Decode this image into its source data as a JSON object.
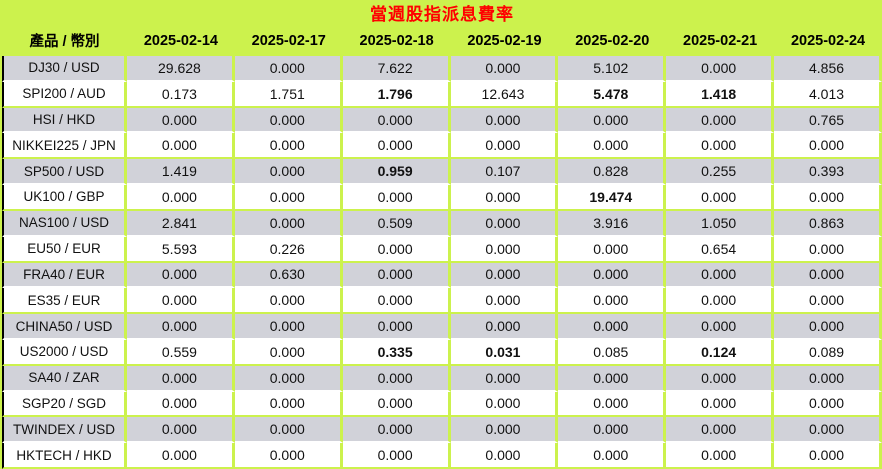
{
  "title": "當週股指派息費率",
  "colors": {
    "header_green": "#ccf24d",
    "row_gray": "#d1d2d9",
    "row_white": "#ffffff",
    "title_red": "#ff0000"
  },
  "table": {
    "product_header": "產品 / 幣別",
    "date_headers": [
      "2025-02-14",
      "2025-02-17",
      "2025-02-18",
      "2025-02-19",
      "2025-02-20",
      "2025-02-21",
      "2025-02-24"
    ],
    "rows": [
      {
        "product": "DJ30 / USD",
        "values": [
          "29.628",
          "0.000",
          "7.622",
          "0.000",
          "5.102",
          "0.000",
          "4.856"
        ],
        "bold_columns": []
      },
      {
        "product": "SPI200 / AUD",
        "values": [
          "0.173",
          "1.751",
          "1.796",
          "12.643",
          "5.478",
          "1.418",
          "4.013"
        ],
        "bold_columns": [
          2,
          4,
          5
        ]
      },
      {
        "product": "HSI / HKD",
        "values": [
          "0.000",
          "0.000",
          "0.000",
          "0.000",
          "0.000",
          "0.000",
          "0.765"
        ],
        "bold_columns": []
      },
      {
        "product": "NIKKEI225 / JPN",
        "values": [
          "0.000",
          "0.000",
          "0.000",
          "0.000",
          "0.000",
          "0.000",
          "0.000"
        ],
        "bold_columns": []
      },
      {
        "product": "SP500 / USD",
        "values": [
          "1.419",
          "0.000",
          "0.959",
          "0.107",
          "0.828",
          "0.255",
          "0.393"
        ],
        "bold_columns": [
          2
        ]
      },
      {
        "product": "UK100 / GBP",
        "values": [
          "0.000",
          "0.000",
          "0.000",
          "0.000",
          "19.474",
          "0.000",
          "0.000"
        ],
        "bold_columns": [
          4
        ]
      },
      {
        "product": "NAS100 / USD",
        "values": [
          "2.841",
          "0.000",
          "0.509",
          "0.000",
          "3.916",
          "1.050",
          "0.863"
        ],
        "bold_columns": []
      },
      {
        "product": "EU50 / EUR",
        "values": [
          "5.593",
          "0.226",
          "0.000",
          "0.000",
          "0.000",
          "0.654",
          "0.000"
        ],
        "bold_columns": []
      },
      {
        "product": "FRA40 / EUR",
        "values": [
          "0.000",
          "0.630",
          "0.000",
          "0.000",
          "0.000",
          "0.000",
          "0.000"
        ],
        "bold_columns": []
      },
      {
        "product": "ES35 / EUR",
        "values": [
          "0.000",
          "0.000",
          "0.000",
          "0.000",
          "0.000",
          "0.000",
          "0.000"
        ],
        "bold_columns": []
      },
      {
        "product": "CHINA50 / USD",
        "values": [
          "0.000",
          "0.000",
          "0.000",
          "0.000",
          "0.000",
          "0.000",
          "0.000"
        ],
        "bold_columns": []
      },
      {
        "product": "US2000 / USD",
        "values": [
          "0.559",
          "0.000",
          "0.335",
          "0.031",
          "0.085",
          "0.124",
          "0.089"
        ],
        "bold_columns": [
          2,
          3,
          5
        ]
      },
      {
        "product": "SA40 / ZAR",
        "values": [
          "0.000",
          "0.000",
          "0.000",
          "0.000",
          "0.000",
          "0.000",
          "0.000"
        ],
        "bold_columns": []
      },
      {
        "product": "SGP20 / SGD",
        "values": [
          "0.000",
          "0.000",
          "0.000",
          "0.000",
          "0.000",
          "0.000",
          "0.000"
        ],
        "bold_columns": []
      },
      {
        "product": "TWINDEX / USD",
        "values": [
          "0.000",
          "0.000",
          "0.000",
          "0.000",
          "0.000",
          "0.000",
          "0.000"
        ],
        "bold_columns": []
      },
      {
        "product": "HKTECH / HKD",
        "values": [
          "0.000",
          "0.000",
          "0.000",
          "0.000",
          "0.000",
          "0.000",
          "0.000"
        ],
        "bold_columns": []
      }
    ]
  },
  "chart_data": {
    "type": "table",
    "title": "當週股指派息費率",
    "columns": [
      "產品 / 幣別",
      "2025-02-14",
      "2025-02-17",
      "2025-02-18",
      "2025-02-19",
      "2025-02-20",
      "2025-02-21",
      "2025-02-24"
    ],
    "rows": [
      [
        "DJ30 / USD",
        29.628,
        0.0,
        7.622,
        0.0,
        5.102,
        0.0,
        4.856
      ],
      [
        "SPI200 / AUD",
        0.173,
        1.751,
        1.796,
        12.643,
        5.478,
        1.418,
        4.013
      ],
      [
        "HSI / HKD",
        0.0,
        0.0,
        0.0,
        0.0,
        0.0,
        0.0,
        0.765
      ],
      [
        "NIKKEI225 / JPN",
        0.0,
        0.0,
        0.0,
        0.0,
        0.0,
        0.0,
        0.0
      ],
      [
        "SP500 / USD",
        1.419,
        0.0,
        0.959,
        0.107,
        0.828,
        0.255,
        0.393
      ],
      [
        "UK100 / GBP",
        0.0,
        0.0,
        0.0,
        0.0,
        19.474,
        0.0,
        0.0
      ],
      [
        "NAS100 / USD",
        2.841,
        0.0,
        0.509,
        0.0,
        3.916,
        1.05,
        0.863
      ],
      [
        "EU50 / EUR",
        5.593,
        0.226,
        0.0,
        0.0,
        0.0,
        0.654,
        0.0
      ],
      [
        "FRA40 / EUR",
        0.0,
        0.63,
        0.0,
        0.0,
        0.0,
        0.0,
        0.0
      ],
      [
        "ES35 / EUR",
        0.0,
        0.0,
        0.0,
        0.0,
        0.0,
        0.0,
        0.0
      ],
      [
        "CHINA50 / USD",
        0.0,
        0.0,
        0.0,
        0.0,
        0.0,
        0.0,
        0.0
      ],
      [
        "US2000 / USD",
        0.559,
        0.0,
        0.335,
        0.031,
        0.085,
        0.124,
        0.089
      ],
      [
        "SA40 / ZAR",
        0.0,
        0.0,
        0.0,
        0.0,
        0.0,
        0.0,
        0.0
      ],
      [
        "SGP20 / SGD",
        0.0,
        0.0,
        0.0,
        0.0,
        0.0,
        0.0,
        0.0
      ],
      [
        "TWINDEX / USD",
        0.0,
        0.0,
        0.0,
        0.0,
        0.0,
        0.0,
        0.0
      ],
      [
        "HKTECH / HKD",
        0.0,
        0.0,
        0.0,
        0.0,
        0.0,
        0.0,
        0.0
      ]
    ]
  }
}
